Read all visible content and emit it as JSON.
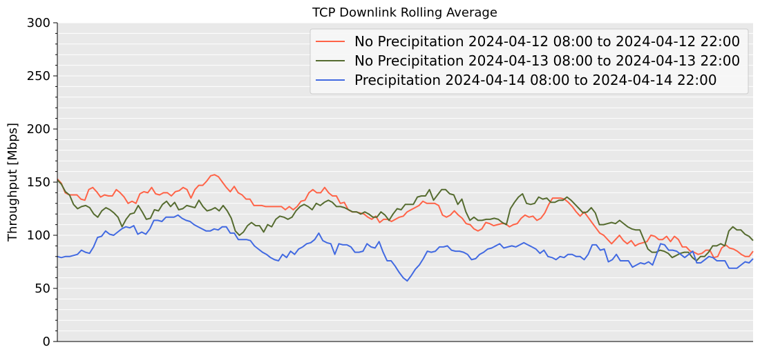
{
  "chart_data": {
    "type": "line",
    "title": "TCP Downlink Rolling Average",
    "xlabel": "",
    "ylabel": "Throughput [Mbps]",
    "ylim": [
      0,
      300
    ],
    "yticks": [
      0,
      50,
      100,
      150,
      200,
      250,
      300
    ],
    "grid": true,
    "legend_position": "top-right",
    "background": "#e9e9e9",
    "series": [
      {
        "name": "No Precipitation 2024-04-12 08:00 to 2024-04-12 22:00",
        "color": "#ff6347",
        "values": [
          153,
          149,
          140,
          138,
          138,
          138,
          134,
          133,
          143,
          145,
          141,
          136,
          138,
          137,
          137,
          143,
          140,
          136,
          130,
          132,
          130,
          139,
          141,
          140,
          145,
          139,
          138,
          140,
          140,
          137,
          141,
          142,
          145,
          143,
          135,
          143,
          147,
          147,
          151,
          156,
          157,
          155,
          150,
          145,
          141,
          146,
          140,
          138,
          134,
          134,
          128,
          128,
          128,
          127,
          127,
          127,
          127,
          127,
          124,
          127,
          124,
          127,
          132,
          133,
          140,
          143,
          140,
          140,
          145,
          140,
          137,
          137,
          130,
          131,
          124,
          122,
          122,
          121,
          120,
          117,
          115,
          118,
          112,
          115,
          115,
          113,
          115,
          117,
          118,
          122,
          124,
          126,
          128,
          132,
          130,
          130,
          130,
          128,
          119,
          117,
          119,
          123,
          119,
          116,
          111,
          110,
          106,
          104,
          106,
          112,
          111,
          109,
          110,
          111,
          111,
          108,
          110,
          111,
          116,
          119,
          117,
          118,
          114,
          116,
          121,
          129,
          135,
          135,
          135,
          134,
          131,
          127,
          122,
          118,
          122,
          117,
          112,
          107,
          102,
          100,
          96,
          92,
          96,
          100,
          95,
          92,
          95,
          90,
          92,
          93,
          94,
          100,
          99,
          96,
          96,
          99,
          94,
          99,
          96,
          89,
          89,
          85,
          84,
          82,
          83,
          86,
          86,
          79,
          80,
          88,
          91,
          88,
          87,
          85,
          82,
          80,
          80,
          85
        ]
      },
      {
        "name": "No Precipitation 2024-04-13 08:00 to 2024-04-13 22:00",
        "color": "#556b2f",
        "values": [
          152,
          148,
          141,
          138,
          129,
          125,
          127,
          128,
          126,
          120,
          117,
          123,
          126,
          124,
          121,
          117,
          108,
          115,
          120,
          121,
          128,
          122,
          115,
          116,
          124,
          123,
          129,
          132,
          127,
          131,
          124,
          125,
          128,
          127,
          126,
          133,
          127,
          123,
          124,
          126,
          123,
          128,
          123,
          116,
          104,
          100,
          103,
          109,
          112,
          109,
          109,
          103,
          110,
          108,
          115,
          118,
          117,
          115,
          117,
          123,
          127,
          129,
          127,
          124,
          130,
          128,
          131,
          133,
          131,
          127,
          127,
          126,
          124,
          122,
          122,
          120,
          122,
          120,
          117,
          117,
          122,
          119,
          114,
          120,
          125,
          124,
          129,
          129,
          129,
          136,
          137,
          137,
          143,
          133,
          138,
          143,
          143,
          139,
          138,
          129,
          134,
          122,
          114,
          117,
          114,
          114,
          115,
          115,
          116,
          115,
          112,
          110,
          125,
          131,
          136,
          139,
          130,
          129,
          130,
          136,
          134,
          135,
          131,
          131,
          133,
          133,
          136,
          133,
          129,
          125,
          121,
          122,
          126,
          121,
          110,
          110,
          111,
          112,
          111,
          114,
          111,
          108,
          106,
          105,
          105,
          96,
          87,
          84,
          84,
          86,
          85,
          83,
          79,
          81,
          83,
          84,
          84,
          79,
          76,
          80,
          80,
          84,
          90,
          90,
          92,
          90,
          104,
          108,
          105,
          105,
          101,
          99,
          95
        ]
      },
      {
        "name": "Precipitation 2024-04-14 08:00 to 2024-04-14 22:00",
        "color": "#4169e1",
        "values": [
          80,
          79,
          80,
          80,
          81,
          82,
          86,
          84,
          83,
          89,
          98,
          99,
          104,
          101,
          100,
          103,
          106,
          108,
          107,
          109,
          101,
          103,
          101,
          106,
          114,
          114,
          113,
          117,
          117,
          117,
          119,
          116,
          114,
          113,
          110,
          108,
          106,
          104,
          104,
          106,
          105,
          108,
          108,
          102,
          102,
          96,
          96,
          96,
          95,
          90,
          87,
          84,
          82,
          79,
          77,
          76,
          82,
          79,
          85,
          82,
          87,
          89,
          92,
          93,
          96,
          102,
          95,
          93,
          92,
          82,
          92,
          91,
          91,
          89,
          84,
          84,
          85,
          92,
          89,
          88,
          94,
          84,
          76,
          76,
          71,
          65,
          60,
          57,
          62,
          68,
          72,
          78,
          85,
          84,
          85,
          89,
          89,
          90,
          86,
          85,
          85,
          84,
          82,
          77,
          78,
          82,
          84,
          87,
          88,
          90,
          92,
          88,
          89,
          90,
          89,
          91,
          93,
          91,
          89,
          87,
          83,
          86,
          80,
          79,
          77,
          80,
          79,
          82,
          82,
          80,
          80,
          77,
          82,
          91,
          91,
          86,
          87,
          75,
          77,
          82,
          76,
          76,
          76,
          70,
          72,
          74,
          73,
          75,
          72,
          82,
          92,
          91,
          86,
          86,
          85,
          82,
          79,
          82,
          85,
          74,
          74,
          77,
          80,
          79,
          76,
          76,
          76,
          69,
          69,
          69,
          72,
          75,
          74,
          78
        ]
      }
    ]
  }
}
